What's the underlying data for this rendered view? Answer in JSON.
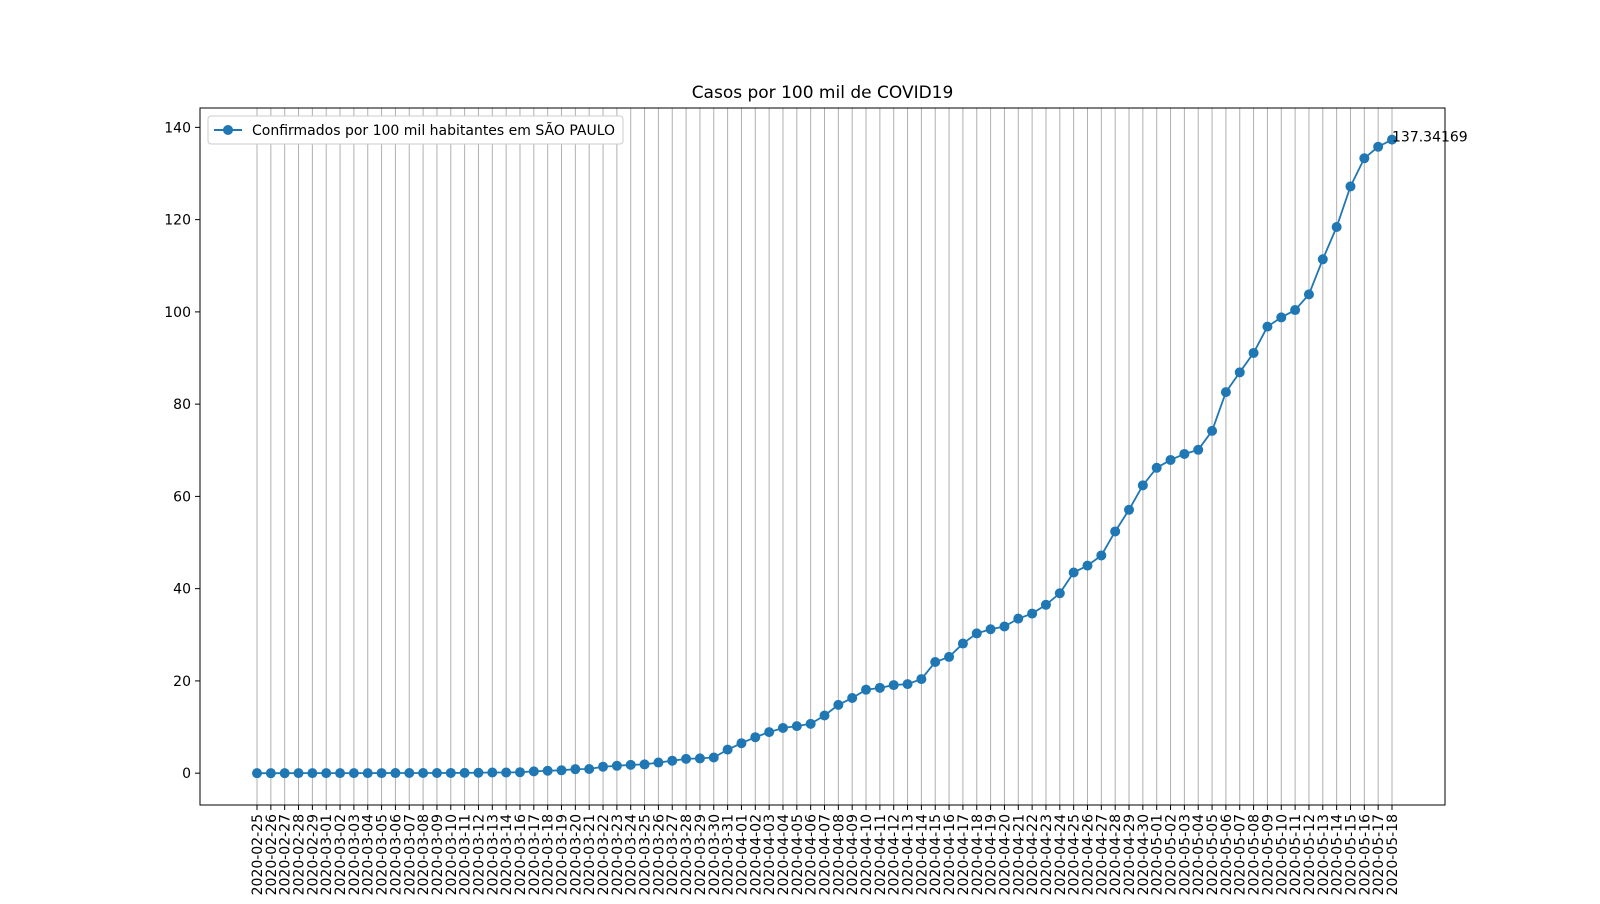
{
  "chart_data": {
    "type": "line",
    "title": "Casos por 100 mil de COVID19",
    "xlabel": "",
    "ylabel": "",
    "ylim": [
      -6.9,
      144.2
    ],
    "yticks": [
      0,
      20,
      40,
      60,
      80,
      100,
      120,
      140
    ],
    "grid": {
      "x": true,
      "y": false
    },
    "legend_position": "upper-left",
    "colors": {
      "series": "#1f77b4",
      "grid": "#b0b0b0"
    },
    "x": [
      "2020-02-25",
      "2020-02-26",
      "2020-02-27",
      "2020-02-28",
      "2020-02-29",
      "2020-03-01",
      "2020-03-02",
      "2020-03-03",
      "2020-03-04",
      "2020-03-05",
      "2020-03-06",
      "2020-03-07",
      "2020-03-08",
      "2020-03-09",
      "2020-03-10",
      "2020-03-11",
      "2020-03-12",
      "2020-03-13",
      "2020-03-14",
      "2020-03-16",
      "2020-03-17",
      "2020-03-18",
      "2020-03-19",
      "2020-03-20",
      "2020-03-21",
      "2020-03-22",
      "2020-03-23",
      "2020-03-24",
      "2020-03-25",
      "2020-03-26",
      "2020-03-27",
      "2020-03-28",
      "2020-03-29",
      "2020-03-30",
      "2020-03-31",
      "2020-04-01",
      "2020-04-02",
      "2020-04-03",
      "2020-04-04",
      "2020-04-05",
      "2020-04-06",
      "2020-04-07",
      "2020-04-08",
      "2020-04-09",
      "2020-04-10",
      "2020-04-11",
      "2020-04-12",
      "2020-04-13",
      "2020-04-14",
      "2020-04-15",
      "2020-04-16",
      "2020-04-17",
      "2020-04-18",
      "2020-04-19",
      "2020-04-20",
      "2020-04-21",
      "2020-04-22",
      "2020-04-23",
      "2020-04-24",
      "2020-04-25",
      "2020-04-26",
      "2020-04-27",
      "2020-04-28",
      "2020-04-29",
      "2020-04-30",
      "2020-05-01",
      "2020-05-02",
      "2020-05-03",
      "2020-05-04",
      "2020-05-05",
      "2020-05-06",
      "2020-05-07",
      "2020-05-08",
      "2020-05-09",
      "2020-05-10",
      "2020-05-11",
      "2020-05-12",
      "2020-05-13",
      "2020-05-14",
      "2020-05-15",
      "2020-05-16",
      "2020-05-17",
      "2020-05-18"
    ],
    "series": [
      {
        "name": "Confirmados por 100 mil habitantes em SÃO PAULO",
        "values": [
          0.0,
          0.0,
          0.0,
          0.01,
          0.01,
          0.01,
          0.01,
          0.01,
          0.01,
          0.02,
          0.03,
          0.04,
          0.04,
          0.04,
          0.05,
          0.07,
          0.09,
          0.15,
          0.14,
          0.21,
          0.39,
          0.52,
          0.62,
          0.87,
          0.91,
          1.4,
          1.6,
          1.8,
          1.9,
          2.3,
          2.7,
          3.1,
          3.2,
          3.4,
          5.1,
          6.5,
          7.8,
          8.9,
          9.8,
          10.2,
          10.7,
          12.5,
          14.8,
          16.3,
          18.1,
          18.5,
          19.1,
          19.3,
          20.4,
          24.1,
          25.2,
          28.1,
          30.3,
          31.2,
          31.8,
          33.5,
          34.6,
          36.5,
          39.0,
          43.5,
          45.0,
          47.2,
          52.4,
          57.1,
          62.4,
          66.2,
          67.9,
          69.2,
          70.1,
          74.2,
          82.6,
          86.9,
          91.1,
          96.8,
          98.8,
          100.4,
          103.8,
          111.4,
          118.4,
          127.2,
          133.3,
          135.8,
          137.34169
        ]
      }
    ],
    "annotations": [
      {
        "text": "137.34169",
        "x": "2020-05-18",
        "y": 137.34169
      }
    ]
  }
}
